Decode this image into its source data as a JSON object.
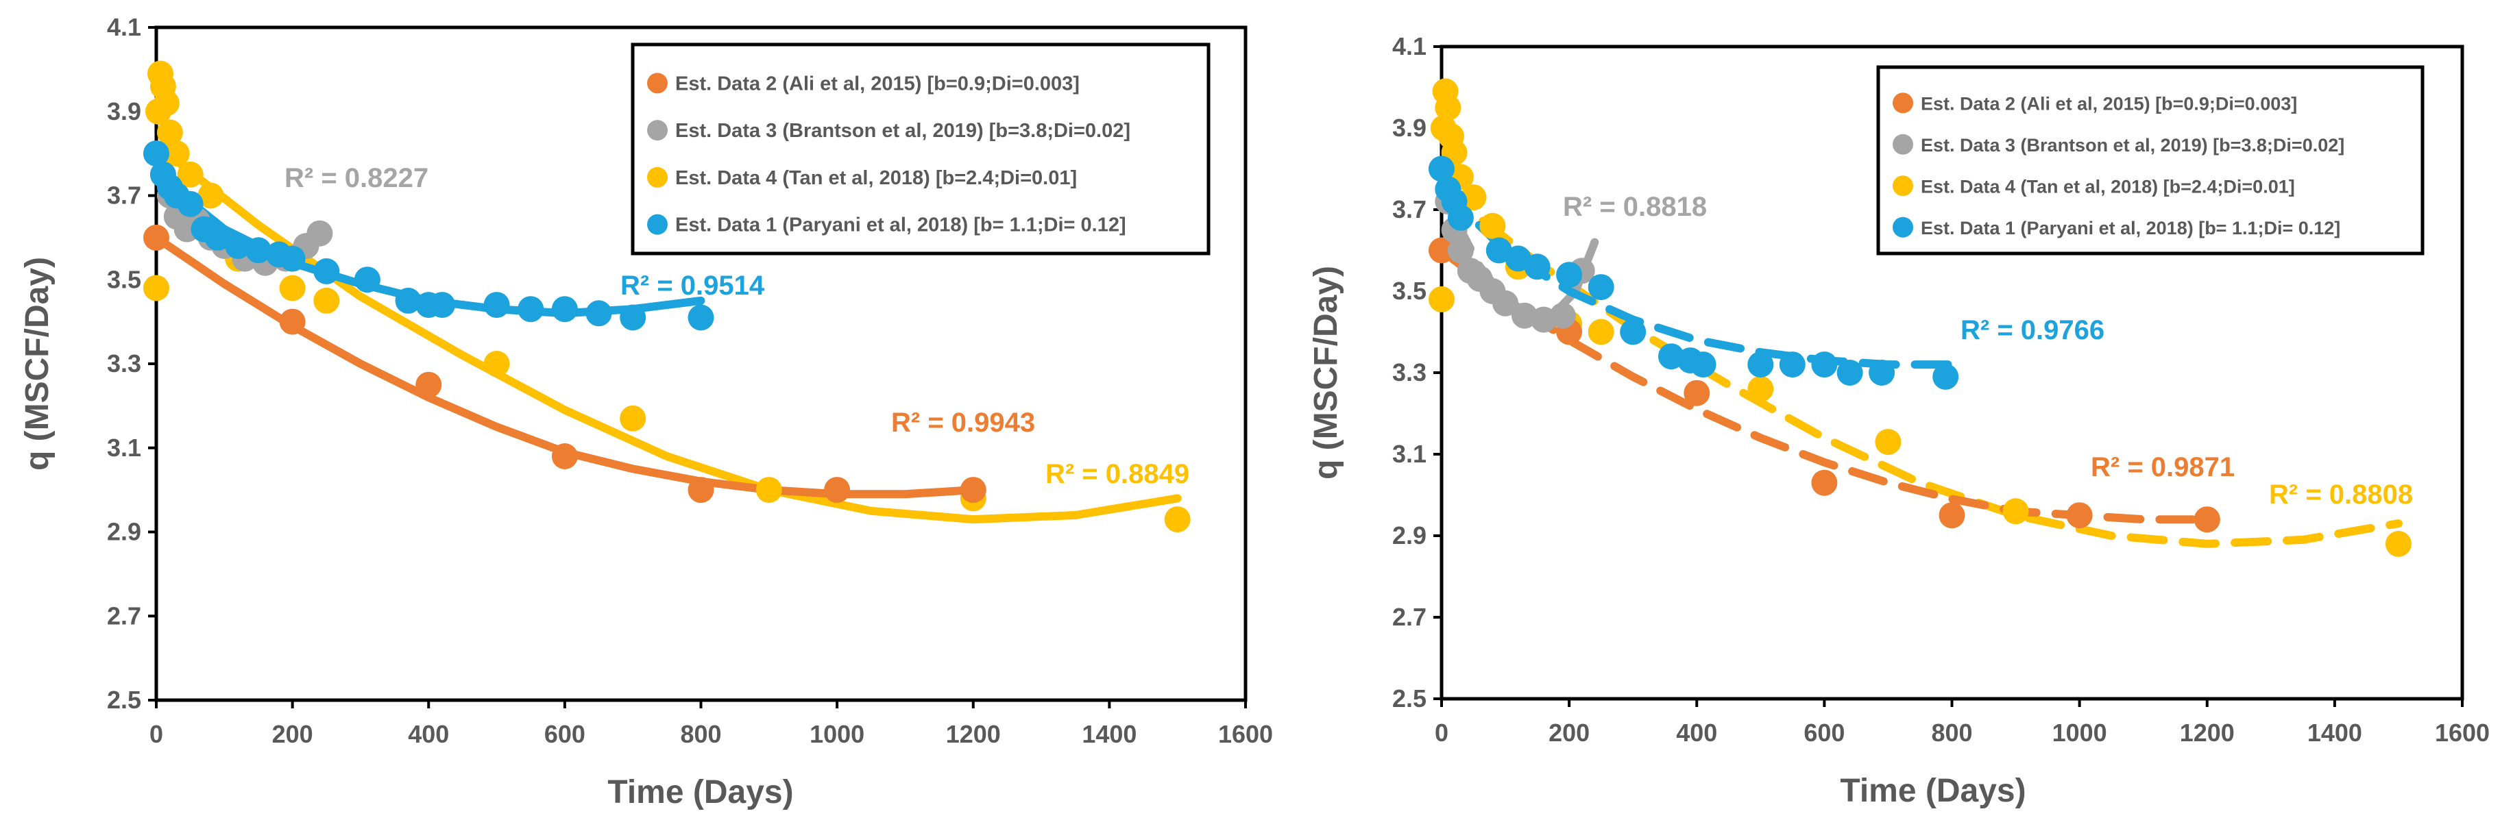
{
  "chart_data": [
    {
      "type": "scatter",
      "panel": "left",
      "xlabel": "Time (Days)",
      "ylabel": "q (MSCF/Day)",
      "xlim": [
        0,
        1600
      ],
      "ylim": [
        2.5,
        4.1
      ],
      "xticks": [
        0,
        200,
        400,
        600,
        800,
        1000,
        1200,
        1400,
        1600
      ],
      "yticks": [
        "2.5",
        "2.7",
        "2.9",
        "3.1",
        "3.3",
        "3.5",
        "3.7",
        "3.9",
        "4.1"
      ],
      "legend_position": "top-right",
      "trendline_style": "solid",
      "series": [
        {
          "name": "Est. Data 2 (Ali et al, 2015) [b=0.9;Di=0.003]",
          "color": "#ED7D31",
          "x": [
            0,
            200,
            400,
            600,
            800,
            1000,
            1200
          ],
          "y": [
            3.6,
            3.4,
            3.25,
            3.08,
            3.0,
            3.0,
            3.0
          ],
          "fit_x": [
            0,
            100,
            200,
            300,
            400,
            500,
            600,
            700,
            800,
            900,
            1000,
            1100,
            1200
          ],
          "fit_y": [
            3.6,
            3.49,
            3.39,
            3.3,
            3.22,
            3.15,
            3.09,
            3.05,
            3.02,
            3.0,
            2.99,
            2.99,
            3.0
          ],
          "r2": "R² = 0.9943"
        },
        {
          "name": "Est. Data 3 (Brantson et al, 2019) [b=3.8;Di=0.02]",
          "color": "#A5A5A5",
          "x": [
            0,
            10,
            20,
            30,
            45,
            60,
            80,
            100,
            130,
            160,
            190,
            220,
            240
          ],
          "y": [
            3.8,
            3.75,
            3.7,
            3.65,
            3.62,
            3.64,
            3.6,
            3.58,
            3.55,
            3.54,
            3.55,
            3.58,
            3.61
          ],
          "fit_x": [
            0,
            40,
            80,
            120,
            160,
            200,
            240
          ],
          "fit_y": [
            3.8,
            3.68,
            3.6,
            3.56,
            3.55,
            3.57,
            3.62
          ],
          "r2": "R² = 0.8227"
        },
        {
          "name": "Est. Data 4 (Tan et al, 2018) [b=2.4;Di=0.01]",
          "color": "#FFC000",
          "x": [
            0,
            3,
            6,
            10,
            15,
            20,
            30,
            50,
            80,
            120,
            200,
            250,
            500,
            700,
            900,
            1200,
            1500
          ],
          "y": [
            3.48,
            3.9,
            3.99,
            3.96,
            3.92,
            3.85,
            3.8,
            3.75,
            3.7,
            3.55,
            3.48,
            3.45,
            3.3,
            3.17,
            3.0,
            2.98,
            2.93
          ],
          "fit_x": [
            0,
            150,
            300,
            450,
            600,
            750,
            900,
            1050,
            1200,
            1350,
            1500
          ],
          "fit_y": [
            3.82,
            3.63,
            3.46,
            3.32,
            3.19,
            3.08,
            3.0,
            2.95,
            2.93,
            2.94,
            2.98
          ],
          "r2": "R² = 0.8849"
        },
        {
          "name": "Est. Data 1 (Paryani et al, 2018) [b= 1.1;Di= 0.12]",
          "color": "#1CA3DE",
          "x": [
            0,
            10,
            20,
            30,
            50,
            70,
            90,
            120,
            150,
            180,
            200,
            250,
            310,
            370,
            400,
            420,
            500,
            550,
            600,
            650,
            700,
            800
          ],
          "y": [
            3.8,
            3.75,
            3.72,
            3.7,
            3.68,
            3.62,
            3.6,
            3.58,
            3.57,
            3.56,
            3.55,
            3.52,
            3.5,
            3.45,
            3.44,
            3.44,
            3.44,
            3.43,
            3.43,
            3.42,
            3.41,
            3.41
          ],
          "fit_x": [
            0,
            100,
            200,
            300,
            400,
            500,
            600,
            700,
            800
          ],
          "fit_y": [
            3.75,
            3.62,
            3.54,
            3.49,
            3.45,
            3.43,
            3.42,
            3.43,
            3.45
          ],
          "r2": "R² = 0.9514"
        }
      ]
    },
    {
      "type": "scatter",
      "panel": "right",
      "xlabel": "Time (Days)",
      "ylabel": "q (MSCF/Day)",
      "xlim": [
        0,
        1600
      ],
      "ylim": [
        2.5,
        4.1
      ],
      "xticks": [
        0,
        200,
        400,
        600,
        800,
        1000,
        1200,
        1400,
        1600
      ],
      "yticks": [
        "2.5",
        "2.7",
        "2.9",
        "3.1",
        "3.3",
        "3.5",
        "3.7",
        "3.9",
        "4.1"
      ],
      "legend_position": "top-right",
      "trendline_style": "dashed",
      "series": [
        {
          "name": "Est. Data 2 (Ali et al, 2015) [b=0.9;Di=0.003]",
          "color": "#ED7D31",
          "x": [
            0,
            200,
            400,
            600,
            800,
            1000,
            1200
          ],
          "y": [
            3.6,
            3.4,
            3.25,
            3.03,
            2.95,
            2.95,
            2.94
          ],
          "fit_x": [
            0,
            100,
            200,
            300,
            400,
            500,
            600,
            700,
            800,
            900,
            1000,
            1100,
            1200
          ],
          "fit_y": [
            3.6,
            3.48,
            3.38,
            3.29,
            3.21,
            3.14,
            3.08,
            3.03,
            2.99,
            2.96,
            2.95,
            2.94,
            2.94
          ],
          "r2": "R² = 0.9871"
        },
        {
          "name": "Est. Data 3 (Brantson et al, 2019) [b=3.8;Di=0.02]",
          "color": "#A5A5A5",
          "x": [
            0,
            10,
            20,
            30,
            45,
            60,
            80,
            100,
            130,
            160,
            190,
            220
          ],
          "y": [
            3.8,
            3.72,
            3.65,
            3.6,
            3.55,
            3.53,
            3.5,
            3.47,
            3.44,
            3.43,
            3.44,
            3.55
          ],
          "fit_x": [
            0,
            30,
            60,
            90,
            120,
            150,
            180,
            210,
            240
          ],
          "fit_y": [
            3.8,
            3.65,
            3.56,
            3.5,
            3.46,
            3.44,
            3.45,
            3.5,
            3.62
          ],
          "r2": "R² = 0.8818"
        },
        {
          "name": "Est. Data 4 (Tan et al, 2018) [b=2.4;Di=0.01]",
          "color": "#FFC000",
          "x": [
            0,
            3,
            6,
            10,
            15,
            20,
            30,
            50,
            80,
            120,
            200,
            250,
            500,
            700,
            900,
            1200,
            1500
          ],
          "y": [
            3.48,
            3.9,
            3.99,
            3.95,
            3.88,
            3.84,
            3.78,
            3.73,
            3.66,
            3.56,
            3.42,
            3.4,
            3.26,
            3.13,
            2.96,
            2.94,
            2.88
          ],
          "fit_x": [
            0,
            150,
            300,
            450,
            600,
            750,
            900,
            1050,
            1200,
            1350,
            1500
          ],
          "fit_y": [
            3.75,
            3.57,
            3.41,
            3.27,
            3.14,
            3.03,
            2.95,
            2.9,
            2.88,
            2.89,
            2.93
          ],
          "r2": "R² = 0.8808"
        },
        {
          "name": "Est. Data 1 (Paryani et al, 2018) [b= 1.1;Di= 0.12]",
          "color": "#1CA3DE",
          "x": [
            0,
            10,
            20,
            30,
            90,
            120,
            150,
            200,
            250,
            300,
            360,
            390,
            410,
            500,
            550,
            600,
            640,
            690,
            790
          ],
          "y": [
            3.8,
            3.75,
            3.72,
            3.68,
            3.6,
            3.58,
            3.56,
            3.54,
            3.51,
            3.4,
            3.34,
            3.33,
            3.32,
            3.32,
            3.32,
            3.32,
            3.3,
            3.3,
            3.29
          ],
          "fit_x": [
            0,
            100,
            200,
            300,
            400,
            500,
            600,
            700,
            800
          ],
          "fit_y": [
            3.75,
            3.6,
            3.5,
            3.43,
            3.38,
            3.35,
            3.33,
            3.32,
            3.32
          ],
          "r2": "R² = 0.9766"
        }
      ]
    }
  ]
}
